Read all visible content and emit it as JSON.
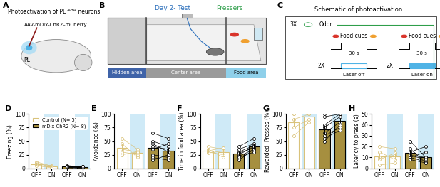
{
  "panels": {
    "A": {
      "label": "A",
      "title": [
        "Photoactivation of PL",
        "GABA",
        " neurons"
      ],
      "virus": "AAV-mDlx-ChR2–mCherry",
      "region": "PL"
    },
    "B": {
      "label": "B",
      "day": "Day 2- Test",
      "group": "Pressers",
      "areas": [
        "Hidden area",
        "Center area",
        "Food area"
      ]
    },
    "C": {
      "label": "C",
      "title": "Schematic of photoactivation",
      "repeats": "3X",
      "odor": "Odor",
      "blocks": [
        {
          "cue": "Food cues",
          "duration": "30 s",
          "repeats": "2X",
          "laser": "Laser off"
        },
        {
          "cue": "Food cues",
          "duration": "30 s",
          "repeats": "2X",
          "laser": "Laser on"
        }
      ]
    }
  },
  "chart_data": [
    {
      "type": "bar",
      "title": "D",
      "ylabel": "Freezing (%)",
      "categories": [
        "OFF",
        "ON",
        "OFF",
        "ON"
      ],
      "ylim": [
        0,
        100
      ],
      "yticks": [
        0,
        25,
        50,
        75,
        100
      ],
      "legend": "upper center",
      "series": [
        {
          "name": "Control (N= 5)",
          "color": "#d9c27a",
          "values": [
            8,
            3,
            null,
            null
          ],
          "errors": [
            3,
            1,
            null,
            null
          ],
          "subjects": [
            [
              12,
              4
            ],
            [
              10,
              2
            ],
            [
              8,
              5
            ],
            [
              6,
              3
            ],
            [
              5,
              1
            ]
          ]
        },
        {
          "name": "mDlx-ChR2 (N= 8)",
          "color": "#a68f3f",
          "values": [
            null,
            null,
            3,
            2
          ],
          "errors": [
            null,
            null,
            1,
            1
          ],
          "subjects": [
            [
              5,
              3
            ],
            [
              3,
              2
            ],
            [
              2,
              1
            ],
            [
              4,
              4
            ],
            [
              1,
              0
            ],
            [
              3,
              2
            ],
            [
              2,
              1
            ],
            [
              4,
              3
            ]
          ]
        }
      ]
    },
    {
      "type": "bar",
      "title": "E",
      "ylabel": "Avoidance (%)",
      "categories": [
        "OFF",
        "ON",
        "OFF",
        "ON"
      ],
      "ylim": [
        0,
        100
      ],
      "yticks": [
        0,
        25,
        50,
        75,
        100
      ],
      "series": [
        {
          "color": "#d9c27a",
          "values": [
            38,
            28,
            null,
            null
          ],
          "errors": [
            7,
            5,
            null,
            null
          ],
          "subjects": [
            [
              55,
              35
            ],
            [
              45,
              20
            ],
            [
              35,
              30
            ],
            [
              30,
              25
            ],
            [
              25,
              30
            ]
          ]
        },
        {
          "color": "#a68f3f",
          "values": [
            null,
            null,
            37,
            33
          ],
          "errors": [
            null,
            null,
            7,
            6
          ],
          "subjects": [
            [
              65,
              55
            ],
            [
              50,
              40
            ],
            [
              45,
              30
            ],
            [
              40,
              35
            ],
            [
              35,
              45
            ],
            [
              25,
              20
            ],
            [
              20,
              15
            ],
            [
              15,
              25
            ]
          ]
        }
      ]
    },
    {
      "type": "bar",
      "title": "F",
      "ylabel": "Time in food area (%)",
      "categories": [
        "OFF",
        "ON",
        "OFF",
        "ON"
      ],
      "ylim": [
        0,
        100
      ],
      "yticks": [
        0,
        25,
        50,
        75,
        100
      ],
      "series": [
        {
          "color": "#d9c27a",
          "values": [
            33,
            30,
            null,
            null
          ],
          "errors": [
            4,
            5,
            null,
            null
          ],
          "subjects": [
            [
              40,
              35
            ],
            [
              35,
              20
            ],
            [
              32,
              38
            ],
            [
              30,
              25
            ],
            [
              28,
              32
            ]
          ]
        },
        {
          "color": "#a68f3f",
          "values": [
            null,
            null,
            27,
            40
          ],
          "errors": [
            null,
            null,
            4,
            5
          ],
          "subjects": [
            [
              40,
              55
            ],
            [
              35,
              45
            ],
            [
              30,
              42
            ],
            [
              28,
              38
            ],
            [
              25,
              40
            ],
            [
              22,
              35
            ],
            [
              20,
              30
            ],
            [
              15,
              35
            ]
          ]
        }
      ]
    },
    {
      "type": "bar",
      "title": "G",
      "ylabel": "Rewarded  Presses (%)",
      "categories": [
        "OFF",
        "ON",
        "OFF",
        "ON"
      ],
      "ylim": [
        0,
        100
      ],
      "yticks": [
        0,
        25,
        50,
        75,
        100
      ],
      "series": [
        {
          "color": "#d9c27a",
          "values": [
            85,
            95,
            null,
            null
          ],
          "errors": [
            8,
            3,
            null,
            null
          ],
          "subjects": [
            [
              100,
              100
            ],
            [
              100,
              100
            ],
            [
              90,
              100
            ],
            [
              75,
              90
            ],
            [
              60,
              85
            ]
          ]
        },
        {
          "color": "#a68f3f",
          "values": [
            null,
            null,
            72,
            88
          ],
          "errors": [
            null,
            null,
            8,
            5
          ],
          "subjects": [
            [
              100,
              100
            ],
            [
              95,
              100
            ],
            [
              80,
              100
            ],
            [
              75,
              95
            ],
            [
              65,
              85
            ],
            [
              60,
              75
            ],
            [
              55,
              70
            ],
            [
              50,
              80
            ]
          ]
        }
      ]
    },
    {
      "type": "bar",
      "title": "H",
      "ylabel": "Latency to press (s)",
      "categories": [
        "OFF",
        "ON",
        "OFF",
        "ON"
      ],
      "ylim": [
        0,
        50
      ],
      "yticks": [
        0,
        10,
        20,
        30,
        40,
        50
      ],
      "series": [
        {
          "color": "#d9c27a",
          "values": [
            11,
            11,
            null,
            null
          ],
          "errors": [
            3,
            3,
            null,
            null
          ],
          "subjects": [
            [
              20,
              18
            ],
            [
              15,
              8
            ],
            [
              10,
              12
            ],
            [
              8,
              14
            ],
            [
              3,
              5
            ]
          ]
        },
        {
          "color": "#a68f3f",
          "values": [
            null,
            null,
            14,
            10
          ],
          "errors": [
            null,
            null,
            3,
            2
          ],
          "subjects": [
            [
              25,
              10
            ],
            [
              18,
              5
            ],
            [
              15,
              20
            ],
            [
              12,
              8
            ],
            [
              10,
              15
            ],
            [
              10,
              6
            ],
            [
              12,
              10
            ],
            [
              8,
              5
            ]
          ]
        }
      ]
    }
  ]
}
